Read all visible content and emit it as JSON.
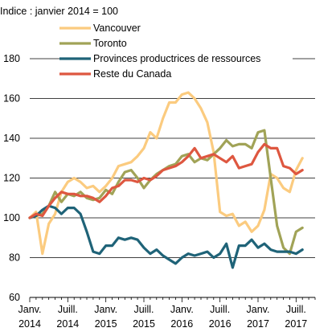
{
  "chart_data": {
    "type": "line",
    "ylabel": "Indice : janvier 2014 = 100",
    "ylim": [
      60,
      180
    ],
    "yticks": [
      "60",
      "80",
      "100",
      "120",
      "140",
      "160",
      "180"
    ],
    "xlim": [
      2014.0,
      2017.75
    ],
    "xticks": [
      {
        "x": 2014.0,
        "line1": "Janv.",
        "line2": "2014"
      },
      {
        "x": 2014.5,
        "line1": "Juill.",
        "line2": "2014"
      },
      {
        "x": 2015.0,
        "line1": "Janv.",
        "line2": "2015"
      },
      {
        "x": 2015.5,
        "line1": "Juill.",
        "line2": "2015"
      },
      {
        "x": 2016.0,
        "line1": "Janv.",
        "line2": "2016"
      },
      {
        "x": 2016.5,
        "line1": "Juill.",
        "line2": "2016"
      },
      {
        "x": 2017.0,
        "line1": "Janv.",
        "line2": "2017"
      },
      {
        "x": 2017.5,
        "line1": "Juill.",
        "line2": "2017"
      }
    ],
    "grid": true,
    "legend_position": "top",
    "x_start": 2014.0,
    "x_step": 0.0833333,
    "series": [
      {
        "name": "Vancouver",
        "color": "#FBCB7F",
        "values": [
          100,
          103,
          82,
          97,
          102,
          113,
          118,
          120,
          118,
          115,
          116,
          113,
          116,
          120,
          126,
          127,
          128,
          131,
          135,
          143,
          140,
          150,
          158,
          158,
          162,
          163,
          160,
          155,
          148,
          133,
          103,
          101,
          102,
          96,
          98,
          93,
          96,
          104,
          122,
          120,
          115,
          113,
          124,
          130
        ]
      },
      {
        "name": "Toronto",
        "color": "#A1A357",
        "values": [
          100,
          101,
          102,
          106,
          113,
          108,
          112,
          111,
          113,
          110,
          109,
          110,
          114,
          112,
          118,
          123,
          124,
          120,
          115,
          119,
          122,
          124,
          126,
          127,
          131,
          132,
          128,
          130,
          129,
          132,
          135,
          139,
          136,
          137,
          137,
          135,
          143,
          144,
          120,
          96,
          85,
          82,
          93,
          95
        ]
      },
      {
        "name": "Provinces productrices de ressources",
        "color": "#1F6378",
        "values": [
          100,
          101,
          104,
          106,
          105,
          102,
          105,
          105,
          102,
          93,
          83,
          82,
          86,
          86,
          90,
          89,
          90,
          89,
          85,
          82,
          84,
          81,
          79,
          77,
          80,
          82,
          81,
          82,
          83,
          80,
          82,
          87,
          75,
          86,
          86,
          89,
          85,
          87,
          84,
          83,
          83,
          83,
          82,
          84
        ]
      },
      {
        "name": "Reste du Canada",
        "color": "#DE5740",
        "values": [
          100,
          102,
          101,
          106,
          110,
          113,
          112,
          112,
          111,
          111,
          110,
          108,
          111,
          115,
          116,
          119,
          119,
          118,
          120,
          119,
          121,
          124,
          125,
          126,
          128,
          131,
          135,
          130,
          131,
          132,
          130,
          128,
          131,
          125,
          126,
          127,
          133,
          137,
          135,
          135,
          126,
          125,
          122,
          124
        ]
      }
    ]
  }
}
